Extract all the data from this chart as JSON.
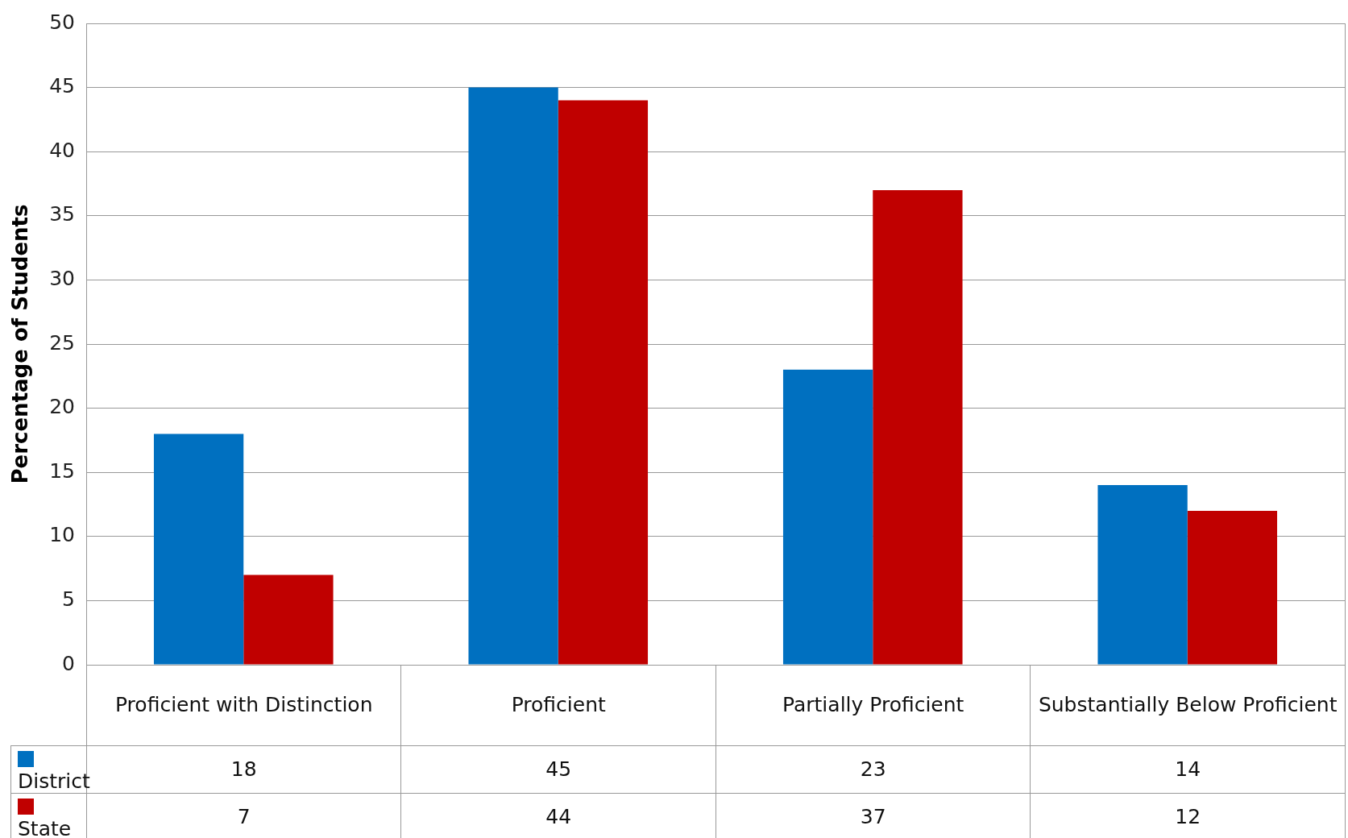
{
  "chart_data": {
    "type": "bar",
    "ylabel": "Percentage of Students",
    "categories": [
      "Proficient with Distinction",
      "Proficient",
      "Partially Proficient",
      "Substantially Below Proficient"
    ],
    "series": [
      {
        "name": "District",
        "color": "#0070c0",
        "values": [
          18,
          45,
          23,
          14
        ]
      },
      {
        "name": "State",
        "color": "#c00000",
        "values": [
          7,
          44,
          37,
          12
        ]
      }
    ],
    "ylim": [
      0,
      50
    ],
    "yticks": [
      0,
      5,
      10,
      15,
      20,
      25,
      30,
      35,
      40,
      45,
      50
    ],
    "grid": "y",
    "legend": "bottom left",
    "data_labels": true
  }
}
